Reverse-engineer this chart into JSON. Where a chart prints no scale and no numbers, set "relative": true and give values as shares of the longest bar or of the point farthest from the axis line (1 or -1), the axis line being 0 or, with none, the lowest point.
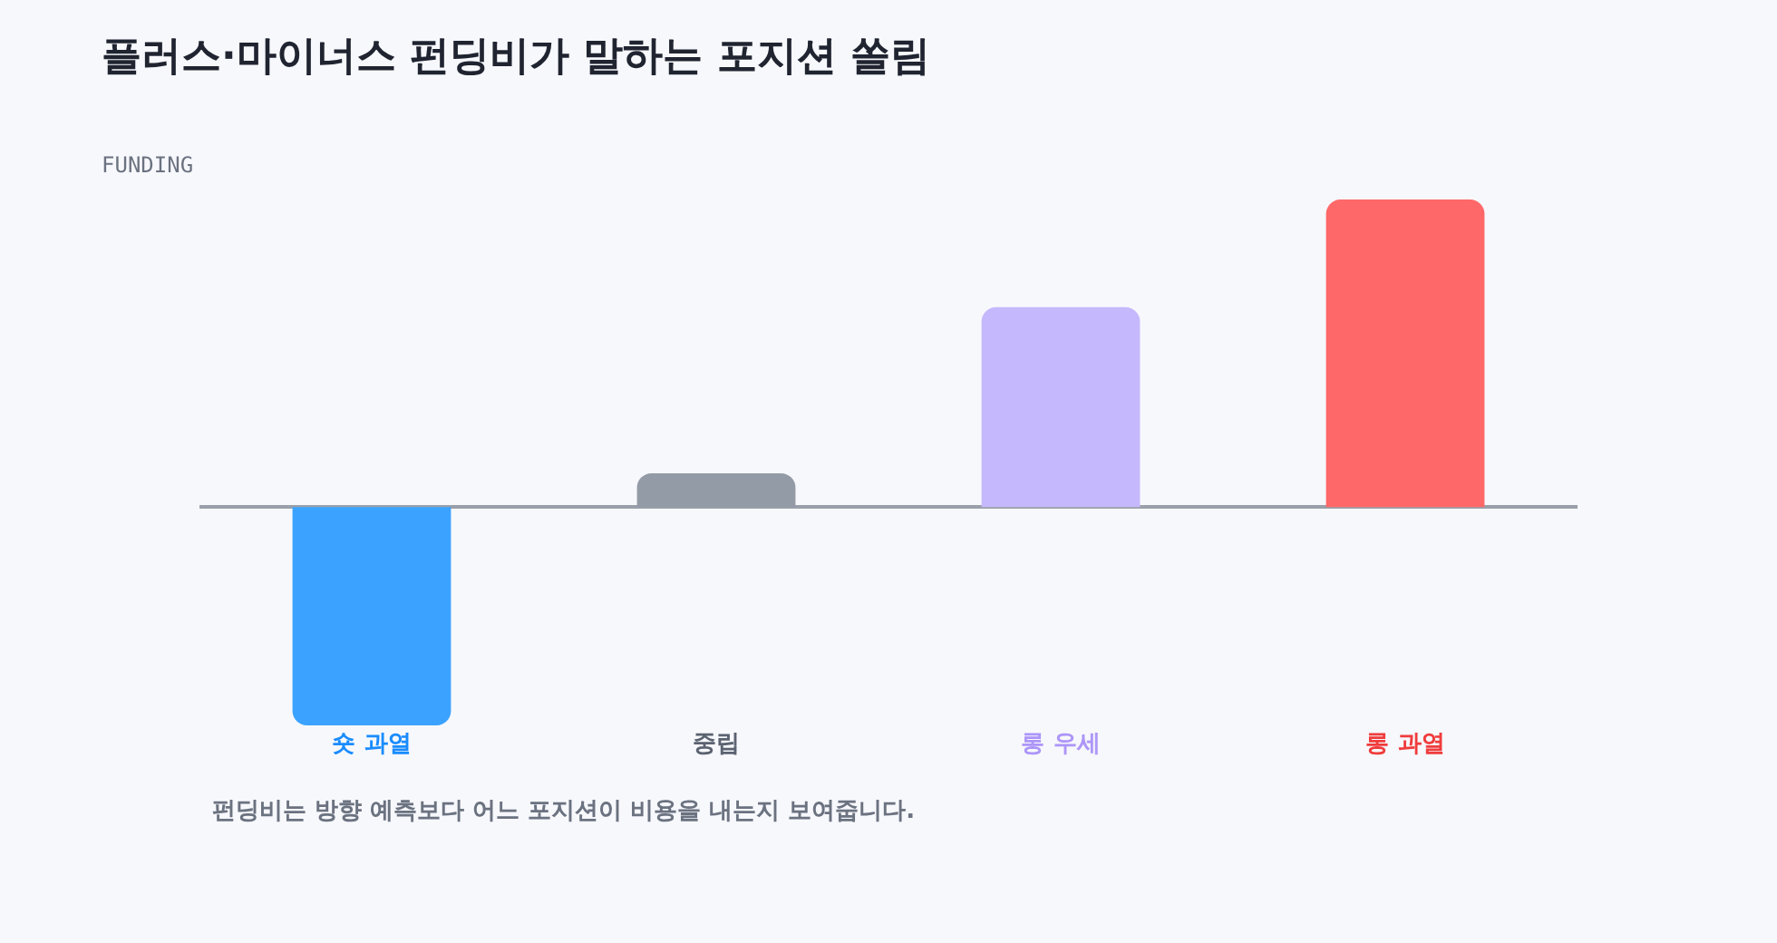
{
  "chart_data": {
    "type": "bar",
    "title": "플러스·마이너스 펀딩비가 말하는 포지션 쏠림",
    "subtitle": "FUNDING",
    "categories": [
      "숏 과열",
      "중립",
      "롱 우세",
      "롱 과열"
    ],
    "values": [
      -0.71,
      0.11,
      0.65,
      1
    ],
    "colors": [
      "#3ba3ff",
      "#939ba6",
      "#c6b8fc",
      "#ff6868"
    ],
    "relative": true,
    "grid": false,
    "annotations": [
      "펀딩비는 방향 예측보다 어느 포지션이 비용을 내는지 보여줍니다."
    ]
  }
}
